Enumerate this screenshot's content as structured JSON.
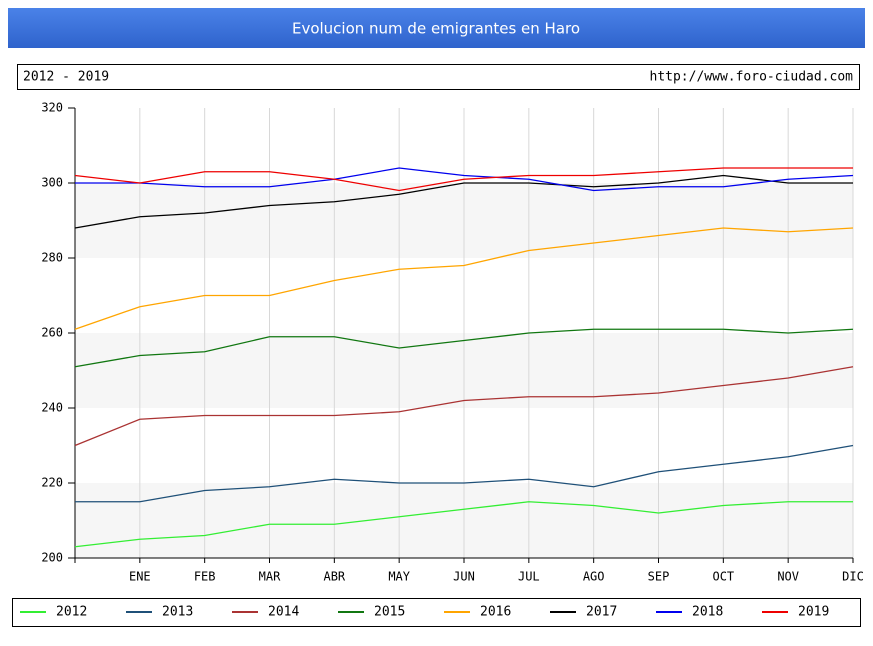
{
  "chart_data": {
    "type": "line",
    "title": "Evolucion num de emigrantes en Haro",
    "period": "2012 - 2019",
    "source": "http://www.foro-ciudad.com",
    "categories": [
      null,
      "ENE",
      "FEB",
      "MAR",
      "ABR",
      "MAY",
      "JUN",
      "JUL",
      "AGO",
      "SEP",
      "OCT",
      "NOV",
      "DIC"
    ],
    "ylim": [
      200,
      320
    ],
    "yticks": [
      200,
      220,
      240,
      260,
      280,
      300,
      320
    ],
    "grid": true,
    "series": [
      {
        "name": "2012",
        "color": "#33ee33",
        "values": [
          203,
          205,
          206,
          209,
          209,
          211,
          213,
          215,
          214,
          212,
          214,
          215,
          215
        ]
      },
      {
        "name": "2013",
        "color": "#1f5078",
        "values": [
          215,
          215,
          218,
          219,
          221,
          220,
          220,
          221,
          219,
          223,
          225,
          227,
          230
        ]
      },
      {
        "name": "2014",
        "color": "#aa3333",
        "values": [
          230,
          237,
          238,
          238,
          238,
          239,
          242,
          243,
          243,
          244,
          246,
          248,
          251
        ]
      },
      {
        "name": "2015",
        "color": "#117711",
        "values": [
          251,
          254,
          255,
          259,
          259,
          256,
          258,
          260,
          261,
          261,
          261,
          260,
          261
        ]
      },
      {
        "name": "2016",
        "color": "#ffa500",
        "values": [
          261,
          267,
          270,
          270,
          274,
          277,
          278,
          282,
          284,
          286,
          288,
          287,
          288
        ]
      },
      {
        "name": "2017",
        "color": "#000000",
        "values": [
          288,
          291,
          292,
          294,
          295,
          297,
          300,
          300,
          299,
          300,
          302,
          300,
          300
        ]
      },
      {
        "name": "2018",
        "color": "#0000ee",
        "values": [
          300,
          300,
          299,
          299,
          301,
          304,
          302,
          301,
          298,
          299,
          299,
          301,
          302
        ]
      },
      {
        "name": "2019",
        "color": "#ee0000",
        "values": [
          302,
          300,
          303,
          303,
          301,
          298,
          301,
          302,
          302,
          303,
          304,
          304,
          304
        ]
      }
    ]
  }
}
